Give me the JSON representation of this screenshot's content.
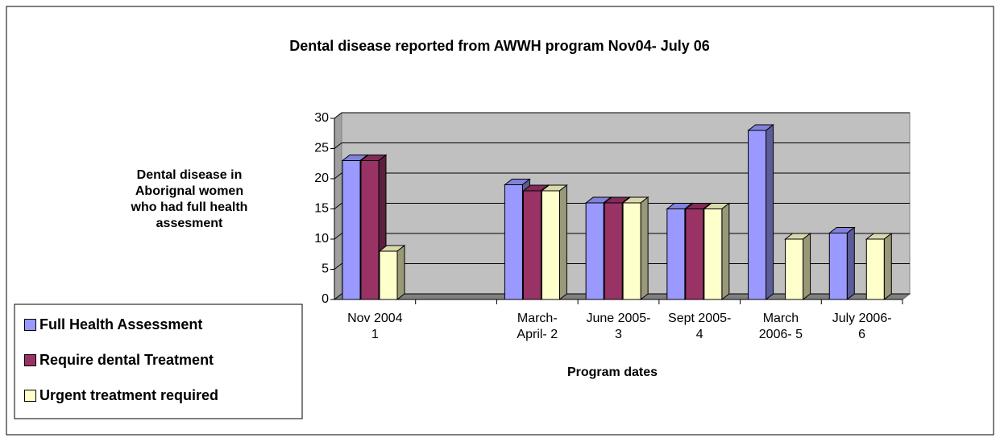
{
  "chart_data": {
    "type": "bar3d",
    "title": "Dental disease reported from AWWH program Nov04- July 06",
    "y_label": "Dental disease in Aborignal women who had full health assesment",
    "x_label": "Program dates",
    "categories": [
      "Nov 2004\n1",
      null,
      "March-\nApril- 2",
      "June 2005-\n3",
      "Sept 2005-\n4",
      "March\n2006- 5",
      "July 2006-\n6"
    ],
    "series": [
      {
        "name": "Full Health Assessment",
        "color": "#9999ff",
        "values": [
          23,
          null,
          19,
          16,
          15,
          28,
          11
        ]
      },
      {
        "name": "Require dental Treatment",
        "color": "#993366",
        "values": [
          23,
          null,
          18,
          16,
          15,
          null,
          null
        ]
      },
      {
        "name": "Urgent treatment required",
        "color": "#ffffcc",
        "values": [
          8,
          null,
          18,
          16,
          15,
          10,
          10
        ]
      }
    ],
    "ylim": [
      0,
      30
    ],
    "yticks": [
      0,
      5,
      10,
      15,
      20,
      25,
      30
    ],
    "grid": true,
    "legend": "left"
  }
}
